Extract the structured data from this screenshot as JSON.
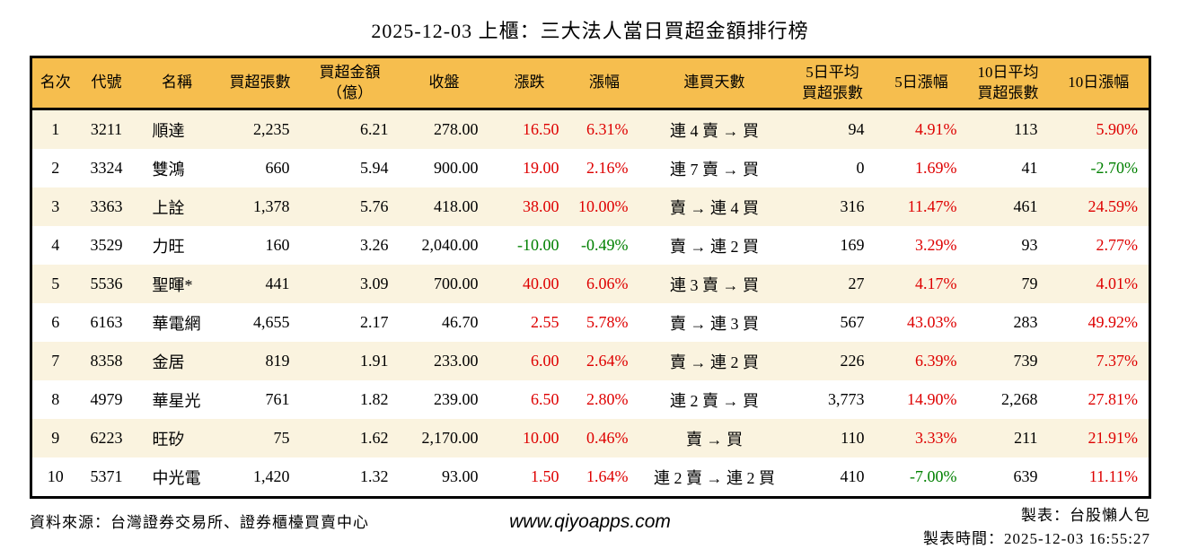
{
  "title": "2025-12-03 上櫃：三大法人當日買超金額排行榜",
  "colors": {
    "header_bg": "#F6BE4E",
    "row_stripe_bg": "#FAF3DF",
    "up_red": "#DE0000",
    "down_green": "#008000",
    "border": "#000000"
  },
  "table": {
    "columns": [
      {
        "name": "rank",
        "label": "名次",
        "align": "center"
      },
      {
        "name": "code",
        "label": "代號",
        "align": "center"
      },
      {
        "name": "stock-name",
        "label": "名稱",
        "align": "left"
      },
      {
        "name": "net-buy-shares",
        "label": "買超張數",
        "align": "right"
      },
      {
        "name": "net-buy-amount",
        "label": "買超金額\n（億）",
        "align": "right"
      },
      {
        "name": "close",
        "label": "收盤",
        "align": "right"
      },
      {
        "name": "change",
        "label": "漲跌",
        "align": "right"
      },
      {
        "name": "change-pct",
        "label": "漲幅",
        "align": "right"
      },
      {
        "name": "streak",
        "label": "連買天數",
        "align": "center"
      },
      {
        "name": "avg5-shares",
        "label": "5日平均\n買超張數",
        "align": "right"
      },
      {
        "name": "pct5",
        "label": "5日漲幅",
        "align": "right"
      },
      {
        "name": "avg10-shares",
        "label": "10日平均\n買超張數",
        "align": "right"
      },
      {
        "name": "pct10",
        "label": "10日漲幅",
        "align": "right"
      }
    ],
    "rows": [
      {
        "cells": [
          {
            "t": "1"
          },
          {
            "t": "3211"
          },
          {
            "t": "順達"
          },
          {
            "t": "2,235"
          },
          {
            "t": "6.21"
          },
          {
            "t": "278.00"
          },
          {
            "t": "16.50",
            "c": "up"
          },
          {
            "t": "6.31%",
            "c": "up"
          },
          {
            "t": "連 4 賣 → 買"
          },
          {
            "t": "94"
          },
          {
            "t": "4.91%",
            "c": "up"
          },
          {
            "t": "113"
          },
          {
            "t": "5.90%",
            "c": "up"
          }
        ]
      },
      {
        "cells": [
          {
            "t": "2"
          },
          {
            "t": "3324"
          },
          {
            "t": "雙鴻"
          },
          {
            "t": "660"
          },
          {
            "t": "5.94"
          },
          {
            "t": "900.00"
          },
          {
            "t": "19.00",
            "c": "up"
          },
          {
            "t": "2.16%",
            "c": "up"
          },
          {
            "t": "連 7 賣 → 買"
          },
          {
            "t": "0"
          },
          {
            "t": "1.69%",
            "c": "up"
          },
          {
            "t": "41"
          },
          {
            "t": "-2.70%",
            "c": "down"
          }
        ]
      },
      {
        "cells": [
          {
            "t": "3"
          },
          {
            "t": "3363"
          },
          {
            "t": "上詮"
          },
          {
            "t": "1,378"
          },
          {
            "t": "5.76"
          },
          {
            "t": "418.00"
          },
          {
            "t": "38.00",
            "c": "up"
          },
          {
            "t": "10.00%",
            "c": "up"
          },
          {
            "t": "賣 → 連 4 買"
          },
          {
            "t": "316"
          },
          {
            "t": "11.47%",
            "c": "up"
          },
          {
            "t": "461"
          },
          {
            "t": "24.59%",
            "c": "up"
          }
        ]
      },
      {
        "cells": [
          {
            "t": "4"
          },
          {
            "t": "3529"
          },
          {
            "t": "力旺"
          },
          {
            "t": "160"
          },
          {
            "t": "3.26"
          },
          {
            "t": "2,040.00"
          },
          {
            "t": "-10.00",
            "c": "down"
          },
          {
            "t": "-0.49%",
            "c": "down"
          },
          {
            "t": "賣 → 連 2 買"
          },
          {
            "t": "169"
          },
          {
            "t": "3.29%",
            "c": "up"
          },
          {
            "t": "93"
          },
          {
            "t": "2.77%",
            "c": "up"
          }
        ]
      },
      {
        "cells": [
          {
            "t": "5"
          },
          {
            "t": "5536"
          },
          {
            "t": "聖暉*"
          },
          {
            "t": "441"
          },
          {
            "t": "3.09"
          },
          {
            "t": "700.00"
          },
          {
            "t": "40.00",
            "c": "up"
          },
          {
            "t": "6.06%",
            "c": "up"
          },
          {
            "t": "連 3 賣 → 買"
          },
          {
            "t": "27"
          },
          {
            "t": "4.17%",
            "c": "up"
          },
          {
            "t": "79"
          },
          {
            "t": "4.01%",
            "c": "up"
          }
        ]
      },
      {
        "cells": [
          {
            "t": "6"
          },
          {
            "t": "6163"
          },
          {
            "t": "華電網"
          },
          {
            "t": "4,655"
          },
          {
            "t": "2.17"
          },
          {
            "t": "46.70"
          },
          {
            "t": "2.55",
            "c": "up"
          },
          {
            "t": "5.78%",
            "c": "up"
          },
          {
            "t": "賣 → 連 3 買"
          },
          {
            "t": "567"
          },
          {
            "t": "43.03%",
            "c": "up"
          },
          {
            "t": "283"
          },
          {
            "t": "49.92%",
            "c": "up"
          }
        ]
      },
      {
        "cells": [
          {
            "t": "7"
          },
          {
            "t": "8358"
          },
          {
            "t": "金居"
          },
          {
            "t": "819"
          },
          {
            "t": "1.91"
          },
          {
            "t": "233.00"
          },
          {
            "t": "6.00",
            "c": "up"
          },
          {
            "t": "2.64%",
            "c": "up"
          },
          {
            "t": "賣 → 連 2 買"
          },
          {
            "t": "226"
          },
          {
            "t": "6.39%",
            "c": "up"
          },
          {
            "t": "739"
          },
          {
            "t": "7.37%",
            "c": "up"
          }
        ]
      },
      {
        "cells": [
          {
            "t": "8"
          },
          {
            "t": "4979"
          },
          {
            "t": "華星光"
          },
          {
            "t": "761"
          },
          {
            "t": "1.82"
          },
          {
            "t": "239.00"
          },
          {
            "t": "6.50",
            "c": "up"
          },
          {
            "t": "2.80%",
            "c": "up"
          },
          {
            "t": "連 2 賣 → 買"
          },
          {
            "t": "3,773"
          },
          {
            "t": "14.90%",
            "c": "up"
          },
          {
            "t": "2,268"
          },
          {
            "t": "27.81%",
            "c": "up"
          }
        ]
      },
      {
        "cells": [
          {
            "t": "9"
          },
          {
            "t": "6223"
          },
          {
            "t": "旺矽"
          },
          {
            "t": "75"
          },
          {
            "t": "1.62"
          },
          {
            "t": "2,170.00"
          },
          {
            "t": "10.00",
            "c": "up"
          },
          {
            "t": "0.46%",
            "c": "up"
          },
          {
            "t": "賣 → 買"
          },
          {
            "t": "110"
          },
          {
            "t": "3.33%",
            "c": "up"
          },
          {
            "t": "211"
          },
          {
            "t": "21.91%",
            "c": "up"
          }
        ]
      },
      {
        "cells": [
          {
            "t": "10"
          },
          {
            "t": "5371"
          },
          {
            "t": "中光電"
          },
          {
            "t": "1,420"
          },
          {
            "t": "1.32"
          },
          {
            "t": "93.00"
          },
          {
            "t": "1.50",
            "c": "up"
          },
          {
            "t": "1.64%",
            "c": "up"
          },
          {
            "t": "連 2 賣 → 連 2 買"
          },
          {
            "t": "410"
          },
          {
            "t": "-7.00%",
            "c": "down"
          },
          {
            "t": "639"
          },
          {
            "t": "11.11%",
            "c": "up"
          }
        ]
      }
    ]
  },
  "footer": {
    "source": "資料來源：台灣證券交易所、證券櫃檯買賣中心",
    "site": "www.qiyoapps.com",
    "maker": "製表：台股懶人包",
    "time": "製表時間：2025-12-03 16:55:27"
  }
}
